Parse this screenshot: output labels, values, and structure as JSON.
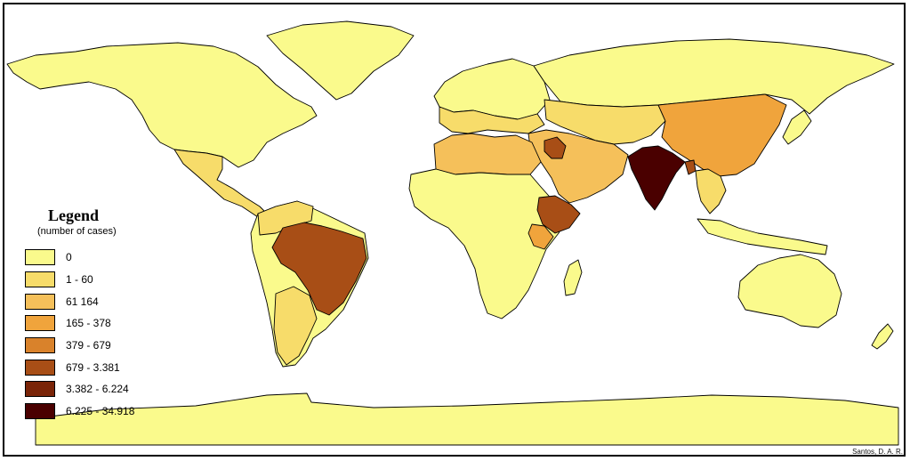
{
  "legend": {
    "title": "Legend",
    "subtitle": "(number of cases)",
    "classes": [
      {
        "label": "0",
        "color": "#fafa8c"
      },
      {
        "label": "1 - 60",
        "color": "#f7dc6a"
      },
      {
        "label": "61 164",
        "color": "#f5c05a"
      },
      {
        "label": "165 - 378",
        "color": "#f0a43c"
      },
      {
        "label": "379 - 679",
        "color": "#d9822b"
      },
      {
        "label": "679 - 3.381",
        "color": "#a84e16"
      },
      {
        "label": "3.382 - 6.224",
        "color": "#7a2408"
      },
      {
        "label": "6.225 - 34.918",
        "color": "#4a0000"
      }
    ]
  },
  "regions": [
    {
      "name": "north-america",
      "color": "#fafa8c"
    },
    {
      "name": "greenland",
      "color": "#fafa8c"
    },
    {
      "name": "central-america",
      "color": "#f7dc6a"
    },
    {
      "name": "south-america",
      "color": "#fafa8c"
    },
    {
      "name": "colombia-venezuela",
      "color": "#f7dc6a"
    },
    {
      "name": "brazil",
      "color": "#a84e16"
    },
    {
      "name": "argentina",
      "color": "#f7dc6a"
    },
    {
      "name": "europe",
      "color": "#fafa8c"
    },
    {
      "name": "southern-europe",
      "color": "#f7dc6a"
    },
    {
      "name": "north-africa",
      "color": "#f5c05a"
    },
    {
      "name": "africa",
      "color": "#fafa8c"
    },
    {
      "name": "ethiopia",
      "color": "#a84e16"
    },
    {
      "name": "kenya",
      "color": "#f0a43c"
    },
    {
      "name": "madagascar",
      "color": "#fafa8c"
    },
    {
      "name": "middle-east",
      "color": "#f5c05a"
    },
    {
      "name": "iraq",
      "color": "#a84e16"
    },
    {
      "name": "russia",
      "color": "#fafa8c"
    },
    {
      "name": "central-asia",
      "color": "#f7dc6a"
    },
    {
      "name": "china",
      "color": "#f0a43c"
    },
    {
      "name": "india",
      "color": "#4a0000"
    },
    {
      "name": "bangladesh",
      "color": "#a84e16"
    },
    {
      "name": "southeast-asia",
      "color": "#f7dc6a"
    },
    {
      "name": "indonesia",
      "color": "#fafa8c"
    },
    {
      "name": "japan",
      "color": "#fafa8c"
    },
    {
      "name": "australia",
      "color": "#fafa8c"
    },
    {
      "name": "new-zealand",
      "color": "#fafa8c"
    },
    {
      "name": "antarctica",
      "color": "#fafa8c"
    }
  ],
  "credit": "Santos, D. A. R."
}
